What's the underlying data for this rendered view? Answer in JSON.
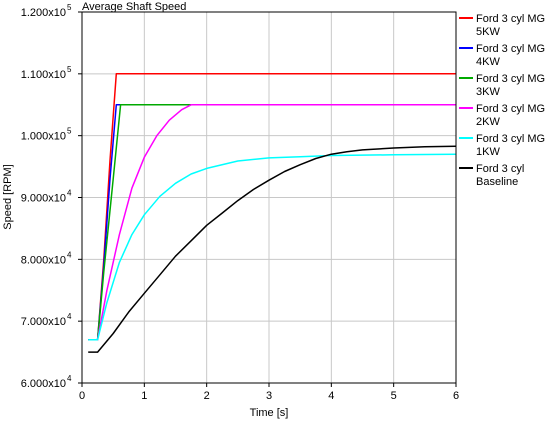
{
  "chart_data": {
    "type": "line",
    "title": "Average Shaft Speed",
    "xlabel": "Time [s]",
    "ylabel": "Speed [RPM]",
    "xlim": [
      0,
      6
    ],
    "ylim": [
      60000,
      120000
    ],
    "x_ticks": [
      0,
      1,
      2,
      3,
      4,
      5,
      6
    ],
    "y_ticks": [
      {
        "value": 60000,
        "mant": "6.000x10",
        "exp": "4"
      },
      {
        "value": 70000,
        "mant": "7.000x10",
        "exp": "4"
      },
      {
        "value": 80000,
        "mant": "8.000x10",
        "exp": "4"
      },
      {
        "value": 90000,
        "mant": "9.000x10",
        "exp": "4"
      },
      {
        "value": 100000,
        "mant": "1.000x10",
        "exp": "5"
      },
      {
        "value": 110000,
        "mant": "1.100x10",
        "exp": "5"
      },
      {
        "value": 120000,
        "mant": "1.200x10",
        "exp": "5"
      }
    ],
    "grid": true,
    "legend_position": "right",
    "series": [
      {
        "name": "Ford 3 cyl MG 5KW",
        "legend_lines": [
          "Ford 3 cyl MG",
          "5KW"
        ],
        "color": "#ff0000",
        "points": [
          [
            0.1,
            67000
          ],
          [
            0.25,
            67000
          ],
          [
            0.35,
            80000
          ],
          [
            0.45,
            96000
          ],
          [
            0.55,
            110000
          ],
          [
            0.6,
            110000
          ],
          [
            6,
            110000
          ]
        ]
      },
      {
        "name": "Ford 3 cyl MG 4KW",
        "legend_lines": [
          "Ford 3 cyl MG",
          "4KW"
        ],
        "color": "#0000ff",
        "points": [
          [
            0.1,
            67000
          ],
          [
            0.25,
            67000
          ],
          [
            0.35,
            79000
          ],
          [
            0.45,
            93000
          ],
          [
            0.55,
            105000
          ],
          [
            0.6,
            105000
          ],
          [
            6,
            105000
          ]
        ]
      },
      {
        "name": "Ford 3 cyl MG 3KW",
        "legend_lines": [
          "Ford 3 cyl MG",
          "3KW"
        ],
        "color": "#00aa00",
        "points": [
          [
            0.1,
            67000
          ],
          [
            0.25,
            67000
          ],
          [
            0.35,
            78000
          ],
          [
            0.5,
            93000
          ],
          [
            0.62,
            105000
          ],
          [
            6,
            105000
          ]
        ]
      },
      {
        "name": "Ford 3 cyl MG 2KW",
        "legend_lines": [
          "Ford 3 cyl MG",
          "2KW"
        ],
        "color": "#ff00ff",
        "points": [
          [
            0.1,
            67000
          ],
          [
            0.25,
            67000
          ],
          [
            0.4,
            75000
          ],
          [
            0.6,
            84000
          ],
          [
            0.8,
            91500
          ],
          [
            1.0,
            96500
          ],
          [
            1.2,
            100000
          ],
          [
            1.4,
            102500
          ],
          [
            1.6,
            104200
          ],
          [
            1.75,
            105000
          ],
          [
            6,
            105000
          ]
        ]
      },
      {
        "name": "Ford 3 cyl MG 1KW",
        "legend_lines": [
          "Ford 3 cyl MG",
          "1KW"
        ],
        "color": "#00ffff",
        "points": [
          [
            0.1,
            67000
          ],
          [
            0.25,
            67000
          ],
          [
            0.4,
            73000
          ],
          [
            0.6,
            79500
          ],
          [
            0.8,
            84000
          ],
          [
            1.0,
            87200
          ],
          [
            1.25,
            90200
          ],
          [
            1.5,
            92300
          ],
          [
            1.75,
            93800
          ],
          [
            2.0,
            94700
          ],
          [
            2.5,
            95900
          ],
          [
            3.0,
            96400
          ],
          [
            3.5,
            96600
          ],
          [
            4.0,
            96800
          ],
          [
            5.0,
            96900
          ],
          [
            6.0,
            97000
          ]
        ]
      },
      {
        "name": "Ford 3 cyl Baseline",
        "legend_lines": [
          "Ford 3 cyl",
          "Baseline"
        ],
        "color": "#000000",
        "points": [
          [
            0.1,
            65000
          ],
          [
            0.25,
            65000
          ],
          [
            0.5,
            68000
          ],
          [
            0.75,
            71500
          ],
          [
            1.0,
            74500
          ],
          [
            1.25,
            77500
          ],
          [
            1.5,
            80500
          ],
          [
            1.75,
            83000
          ],
          [
            2.0,
            85500
          ],
          [
            2.25,
            87500
          ],
          [
            2.5,
            89500
          ],
          [
            2.75,
            91300
          ],
          [
            3.0,
            92800
          ],
          [
            3.25,
            94200
          ],
          [
            3.5,
            95300
          ],
          [
            3.75,
            96300
          ],
          [
            4.0,
            97000
          ],
          [
            4.25,
            97400
          ],
          [
            4.5,
            97700
          ],
          [
            5.0,
            98000
          ],
          [
            5.5,
            98200
          ],
          [
            6.0,
            98300
          ]
        ]
      }
    ]
  }
}
